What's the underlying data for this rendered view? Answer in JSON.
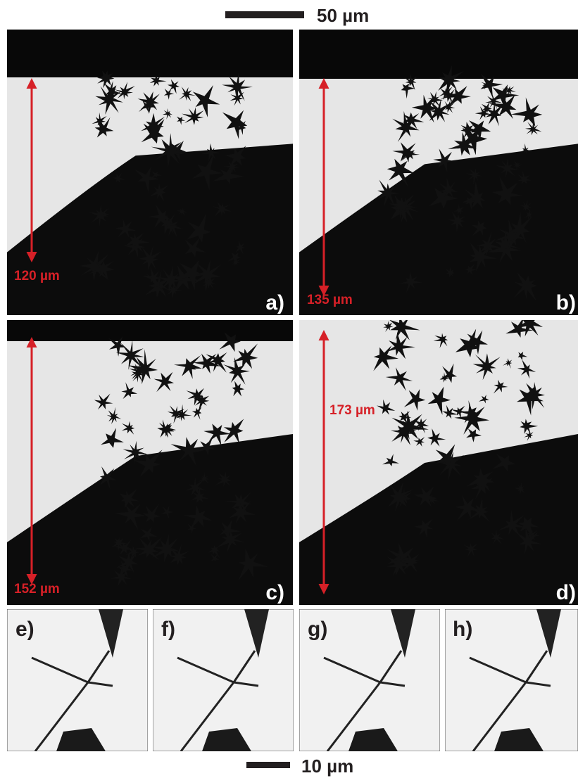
{
  "scale_bar_top": "50 µm",
  "scale_bar_bottom": "10 µm",
  "panels": [
    {
      "label": "a)",
      "measurement": "120 µm"
    },
    {
      "label": "b)",
      "measurement": "135 µm"
    },
    {
      "label": "c)",
      "measurement": "152 µm"
    },
    {
      "label": "d)",
      "measurement": "173 µm"
    },
    {
      "label": "e)"
    },
    {
      "label": "f)"
    },
    {
      "label": "g)"
    },
    {
      "label": "h)"
    }
  ]
}
